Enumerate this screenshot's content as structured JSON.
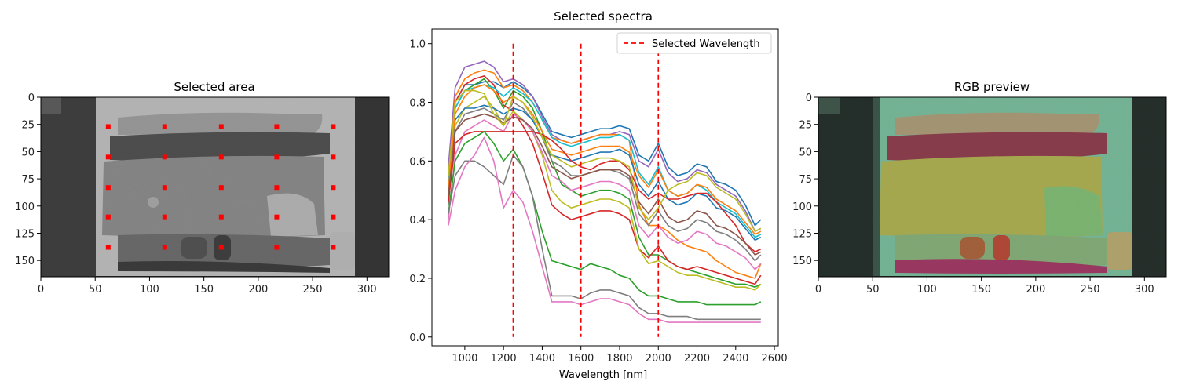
{
  "chart_data": [
    {
      "type": "image",
      "title": "Selected area",
      "xlim": [
        0,
        320
      ],
      "ylim": [
        165,
        0
      ],
      "xticks": [
        0,
        50,
        100,
        150,
        200,
        250,
        300
      ],
      "yticks": [
        0,
        25,
        50,
        75,
        100,
        125,
        150
      ],
      "markers": {
        "color": "#ff0000",
        "x": [
          62,
          114,
          166,
          217,
          269
        ],
        "y": [
          27,
          55,
          83,
          110,
          138
        ]
      }
    },
    {
      "type": "line",
      "title": "Selected spectra",
      "xlabel": "Wavelength [nm]",
      "ylabel": "",
      "xlim": [
        830,
        2620
      ],
      "ylim": [
        -0.03,
        1.05
      ],
      "xticks": [
        1000,
        1200,
        1400,
        1600,
        1800,
        2000,
        2200,
        2400,
        2600
      ],
      "yticks": [
        0.0,
        0.2,
        0.4,
        0.6,
        0.8,
        1.0
      ],
      "ytick_labels": [
        "0.0",
        "0.2",
        "0.4",
        "0.6",
        "0.8",
        "1.0"
      ],
      "legend": {
        "position": "top-right",
        "label": "Selected Wavelength"
      },
      "selected_wavelengths": [
        1250,
        1600,
        2000
      ],
      "vline_range": [
        0,
        1.0
      ],
      "vline_color": "#ff0000",
      "x": [
        915,
        950,
        1000,
        1050,
        1100,
        1150,
        1200,
        1250,
        1300,
        1350,
        1400,
        1450,
        1500,
        1550,
        1600,
        1650,
        1700,
        1750,
        1800,
        1850,
        1900,
        1950,
        2000,
        2050,
        2100,
        2150,
        2200,
        2250,
        2300,
        2350,
        2400,
        2450,
        2500,
        2530
      ],
      "series": [
        {
          "color": "#1f77b4",
          "values": [
            0.55,
            0.8,
            0.86,
            0.86,
            0.87,
            0.87,
            0.85,
            0.87,
            0.85,
            0.82,
            0.76,
            0.7,
            0.69,
            0.68,
            0.69,
            0.7,
            0.71,
            0.71,
            0.72,
            0.71,
            0.62,
            0.6,
            0.66,
            0.58,
            0.55,
            0.56,
            0.59,
            0.58,
            0.53,
            0.52,
            0.5,
            0.45,
            0.38,
            0.4
          ]
        },
        {
          "color": "#9467bd",
          "values": [
            0.58,
            0.85,
            0.92,
            0.93,
            0.94,
            0.92,
            0.87,
            0.88,
            0.86,
            0.82,
            0.75,
            0.69,
            0.67,
            0.66,
            0.67,
            0.68,
            0.69,
            0.69,
            0.7,
            0.69,
            0.6,
            0.58,
            0.64,
            0.56,
            0.53,
            0.54,
            0.57,
            0.56,
            0.52,
            0.5,
            0.48,
            0.43,
            0.36,
            0.37
          ]
        },
        {
          "color": "#ff7f0e",
          "values": [
            0.52,
            0.82,
            0.88,
            0.9,
            0.91,
            0.9,
            0.85,
            0.86,
            0.84,
            0.8,
            0.74,
            0.68,
            0.67,
            0.66,
            0.67,
            0.68,
            0.69,
            0.69,
            0.69,
            0.67,
            0.45,
            0.38,
            0.38,
            0.36,
            0.33,
            0.31,
            0.3,
            0.29,
            0.26,
            0.24,
            0.22,
            0.21,
            0.2,
            0.25
          ]
        },
        {
          "color": "#2ca02c",
          "values": [
            0.5,
            0.78,
            0.84,
            0.86,
            0.88,
            0.84,
            0.78,
            0.84,
            0.82,
            0.78,
            0.7,
            0.6,
            0.52,
            0.5,
            0.48,
            0.49,
            0.5,
            0.5,
            0.49,
            0.47,
            0.34,
            0.28,
            0.28,
            0.26,
            0.24,
            0.23,
            0.22,
            0.21,
            0.2,
            0.19,
            0.18,
            0.18,
            0.17,
            0.18
          ]
        },
        {
          "color": "#d62728",
          "values": [
            0.48,
            0.8,
            0.86,
            0.88,
            0.89,
            0.86,
            0.79,
            0.77,
            0.72,
            0.66,
            0.56,
            0.45,
            0.42,
            0.4,
            0.41,
            0.42,
            0.43,
            0.43,
            0.42,
            0.4,
            0.3,
            0.27,
            0.31,
            0.26,
            0.24,
            0.23,
            0.24,
            0.23,
            0.22,
            0.21,
            0.2,
            0.19,
            0.18,
            0.21
          ]
        },
        {
          "color": "#bcbd22",
          "values": [
            0.47,
            0.72,
            0.78,
            0.8,
            0.82,
            0.78,
            0.72,
            0.77,
            0.74,
            0.7,
            0.62,
            0.5,
            0.46,
            0.44,
            0.45,
            0.46,
            0.47,
            0.47,
            0.46,
            0.44,
            0.3,
            0.25,
            0.26,
            0.24,
            0.22,
            0.21,
            0.21,
            0.2,
            0.19,
            0.18,
            0.17,
            0.17,
            0.16,
            0.18
          ]
        },
        {
          "color": "#17becf",
          "values": [
            0.53,
            0.78,
            0.84,
            0.85,
            0.86,
            0.85,
            0.82,
            0.85,
            0.83,
            0.8,
            0.74,
            0.68,
            0.66,
            0.65,
            0.66,
            0.67,
            0.68,
            0.68,
            0.69,
            0.67,
            0.56,
            0.52,
            0.58,
            0.5,
            0.48,
            0.49,
            0.52,
            0.5,
            0.46,
            0.44,
            0.42,
            0.38,
            0.34,
            0.35
          ]
        },
        {
          "color": "#7f7f7f",
          "values": [
            0.45,
            0.7,
            0.76,
            0.77,
            0.78,
            0.76,
            0.74,
            0.8,
            0.78,
            0.74,
            0.68,
            0.6,
            0.58,
            0.55,
            0.55,
            0.56,
            0.57,
            0.57,
            0.56,
            0.54,
            0.42,
            0.38,
            0.43,
            0.38,
            0.36,
            0.37,
            0.4,
            0.39,
            0.36,
            0.35,
            0.33,
            0.3,
            0.26,
            0.28
          ]
        },
        {
          "color": "#e377c2",
          "values": [
            0.4,
            0.62,
            0.7,
            0.72,
            0.74,
            0.72,
            0.7,
            0.76,
            0.74,
            0.7,
            0.63,
            0.55,
            0.53,
            0.5,
            0.51,
            0.52,
            0.53,
            0.53,
            0.52,
            0.5,
            0.38,
            0.34,
            0.38,
            0.34,
            0.32,
            0.33,
            0.36,
            0.35,
            0.32,
            0.31,
            0.29,
            0.27,
            0.23,
            0.25
          ]
        },
        {
          "color": "#1f77b4",
          "values": [
            0.5,
            0.74,
            0.78,
            0.78,
            0.79,
            0.78,
            0.76,
            0.78,
            0.77,
            0.74,
            0.68,
            0.62,
            0.61,
            0.6,
            0.61,
            0.62,
            0.63,
            0.63,
            0.64,
            0.62,
            0.52,
            0.48,
            0.53,
            0.47,
            0.45,
            0.46,
            0.49,
            0.48,
            0.44,
            0.43,
            0.41,
            0.37,
            0.33,
            0.34
          ]
        },
        {
          "color": "#ff7f0e",
          "values": [
            0.5,
            0.76,
            0.82,
            0.85,
            0.86,
            0.84,
            0.8,
            0.82,
            0.8,
            0.76,
            0.7,
            0.64,
            0.63,
            0.62,
            0.63,
            0.64,
            0.65,
            0.65,
            0.65,
            0.63,
            0.55,
            0.51,
            0.57,
            0.5,
            0.48,
            0.49,
            0.52,
            0.51,
            0.47,
            0.45,
            0.43,
            0.39,
            0.35,
            0.36
          ]
        },
        {
          "color": "#d62728",
          "values": [
            0.46,
            0.66,
            0.69,
            0.7,
            0.7,
            0.7,
            0.7,
            0.7,
            0.7,
            0.7,
            0.69,
            0.67,
            0.64,
            0.6,
            0.58,
            0.57,
            0.59,
            0.6,
            0.6,
            0.57,
            0.5,
            0.47,
            0.49,
            0.47,
            0.47,
            0.48,
            0.49,
            0.49,
            0.46,
            0.42,
            0.38,
            0.32,
            0.29,
            0.3
          ]
        },
        {
          "color": "#8c564b",
          "values": [
            0.48,
            0.7,
            0.74,
            0.75,
            0.76,
            0.75,
            0.73,
            0.75,
            0.74,
            0.71,
            0.65,
            0.58,
            0.56,
            0.54,
            0.55,
            0.56,
            0.57,
            0.57,
            0.57,
            0.55,
            0.46,
            0.42,
            0.47,
            0.41,
            0.39,
            0.4,
            0.43,
            0.42,
            0.38,
            0.37,
            0.35,
            0.32,
            0.28,
            0.29
          ]
        },
        {
          "color": "#bcbd22",
          "values": [
            0.55,
            0.8,
            0.84,
            0.84,
            0.83,
            0.76,
            0.72,
            0.82,
            0.8,
            0.75,
            0.68,
            0.62,
            0.6,
            0.58,
            0.59,
            0.6,
            0.61,
            0.61,
            0.6,
            0.58,
            0.44,
            0.4,
            0.44,
            0.5,
            0.52,
            0.53,
            0.56,
            0.55,
            0.51,
            0.49,
            0.47,
            0.42,
            0.36,
            0.37
          ]
        },
        {
          "color": "#2ca02c",
          "values": [
            0.42,
            0.6,
            0.66,
            0.68,
            0.7,
            0.66,
            0.6,
            0.64,
            0.58,
            0.48,
            0.36,
            0.26,
            0.25,
            0.24,
            0.23,
            0.25,
            0.24,
            0.23,
            0.21,
            0.2,
            0.16,
            0.14,
            0.14,
            0.13,
            0.12,
            0.12,
            0.12,
            0.11,
            0.11,
            0.11,
            0.11,
            0.11,
            0.11,
            0.12
          ]
        },
        {
          "color": "#7f7f7f",
          "values": [
            0.42,
            0.55,
            0.6,
            0.6,
            0.58,
            0.55,
            0.52,
            0.62,
            0.58,
            0.48,
            0.3,
            0.14,
            0.14,
            0.14,
            0.13,
            0.15,
            0.16,
            0.16,
            0.15,
            0.14,
            0.1,
            0.08,
            0.08,
            0.07,
            0.07,
            0.07,
            0.06,
            0.06,
            0.06,
            0.06,
            0.06,
            0.06,
            0.06,
            0.06
          ]
        },
        {
          "color": "#e377c2",
          "values": [
            0.38,
            0.5,
            0.58,
            0.62,
            0.68,
            0.6,
            0.44,
            0.5,
            0.46,
            0.36,
            0.24,
            0.12,
            0.12,
            0.12,
            0.11,
            0.12,
            0.13,
            0.13,
            0.12,
            0.11,
            0.08,
            0.06,
            0.06,
            0.05,
            0.05,
            0.05,
            0.05,
            0.05,
            0.05,
            0.05,
            0.05,
            0.05,
            0.05,
            0.05
          ]
        }
      ]
    },
    {
      "type": "image",
      "title": "RGB preview",
      "xlim": [
        0,
        320
      ],
      "ylim": [
        165,
        0
      ],
      "xticks": [
        0,
        50,
        100,
        150,
        200,
        250,
        300
      ],
      "yticks": [
        0,
        25,
        50,
        75,
        100,
        125,
        150
      ]
    }
  ]
}
